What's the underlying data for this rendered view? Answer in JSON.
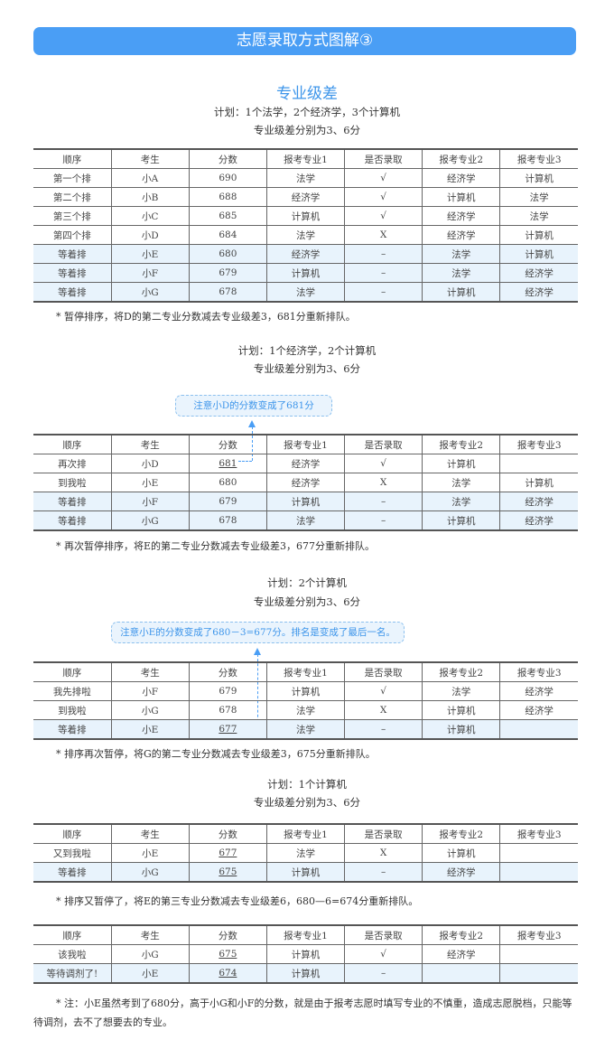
{
  "banner": "志愿录取方式图解③",
  "title": "专业级差",
  "headers": [
    "顺序",
    "考生",
    "分数",
    "报考专业1",
    "是否录取",
    "报考专业2",
    "报考专业3"
  ],
  "colors": {
    "accent": "#4a9ef5",
    "highlight_row": "#e8f3fc"
  },
  "sections": [
    {
      "plan": "计划：1个法学，2个经济学，3个计算机",
      "diff": "专业级差分别为3、6分",
      "rows": [
        {
          "cells": [
            "第一个排",
            "小A",
            "690",
            "法学",
            "√",
            "经济学",
            "计算机"
          ],
          "hl": false
        },
        {
          "cells": [
            "第二个排",
            "小B",
            "688",
            "经济学",
            "√",
            "计算机",
            "法学"
          ],
          "hl": false
        },
        {
          "cells": [
            "第三个排",
            "小C",
            "685",
            "计算机",
            "√",
            "经济学",
            "法学"
          ],
          "hl": false
        },
        {
          "cells": [
            "第四个排",
            "小D",
            "684",
            "法学",
            "X",
            "经济学",
            "计算机"
          ],
          "hl": false
        },
        {
          "cells": [
            "等着排",
            "小E",
            "680",
            "经济学",
            "–",
            "法学",
            "计算机"
          ],
          "hl": true
        },
        {
          "cells": [
            "等着排",
            "小F",
            "679",
            "计算机",
            "–",
            "法学",
            "经济学"
          ],
          "hl": true
        },
        {
          "cells": [
            "等着排",
            "小G",
            "678",
            "法学",
            "–",
            "计算机",
            "经济学"
          ],
          "hl": true
        }
      ],
      "note": "* 暂停排序，将D的第二专业分数减去专业级差3，681分重新排队。"
    },
    {
      "plan": "计划：1个经济学，2个计算机",
      "diff": "专业级差分别为3、6分",
      "callout": "注意小D的分数变成了681分",
      "rows": [
        {
          "cells": [
            "再次排",
            "小D",
            "681",
            "经济学",
            "√",
            "计算机",
            ""
          ],
          "hl": false,
          "u": true
        },
        {
          "cells": [
            "到我啦",
            "小E",
            "680",
            "经济学",
            "X",
            "法学",
            "计算机"
          ],
          "hl": false
        },
        {
          "cells": [
            "等着排",
            "小F",
            "679",
            "计算机",
            "–",
            "法学",
            "经济学"
          ],
          "hl": true
        },
        {
          "cells": [
            "等着排",
            "小G",
            "678",
            "法学",
            "–",
            "计算机",
            "经济学"
          ],
          "hl": true
        }
      ],
      "note": "* 再次暂停排序，将E的第二专业分数减去专业级差3，677分重新排队。"
    },
    {
      "plan": "计划：2个计算机",
      "diff": "专业级差分别为3、6分",
      "callout": "注意小E的分数变成了680－3=677分。排名是变成了最后一名。",
      "rows": [
        {
          "cells": [
            "我先排啦",
            "小F",
            "679",
            "计算机",
            "√",
            "法学",
            "经济学"
          ],
          "hl": false
        },
        {
          "cells": [
            "到我啦",
            "小G",
            "678",
            "法学",
            "X",
            "计算机",
            "经济学"
          ],
          "hl": false
        },
        {
          "cells": [
            "等着排",
            "小E",
            "677",
            "法学",
            "–",
            "计算机",
            ""
          ],
          "hl": true,
          "u": true
        }
      ],
      "note": "* 排序再次暂停，将G的第二专业分数减去专业级差3，675分重新排队。"
    },
    {
      "plan": "计划：1个计算机",
      "diff": "专业级差分别为3、6分",
      "rows": [
        {
          "cells": [
            "又到我啦",
            "小E",
            "677",
            "法学",
            "X",
            "计算机",
            ""
          ],
          "hl": false,
          "u": true
        },
        {
          "cells": [
            "等着排",
            "小G",
            "675",
            "计算机",
            "–",
            "经济学",
            ""
          ],
          "hl": true,
          "u": true
        }
      ],
      "note": "* 排序又暂停了，将E的第三专业分数减去专业级差6，680—6=674分重新排队。"
    },
    {
      "rows": [
        {
          "cells": [
            "该我啦",
            "小G",
            "675",
            "计算机",
            "√",
            "经济学",
            ""
          ],
          "hl": false,
          "u": true
        },
        {
          "cells": [
            "等待调剂了!",
            "小E",
            "674",
            "计算机",
            "–",
            "",
            ""
          ],
          "hl": true,
          "u": true
        }
      ]
    }
  ],
  "footnote": "* 注：小E虽然考到了680分，高于小G和小F的分数，就是由于报考志愿时填写专业的不慎重，造成志愿脱档，只能等待调剂，去不了想要去的专业。"
}
